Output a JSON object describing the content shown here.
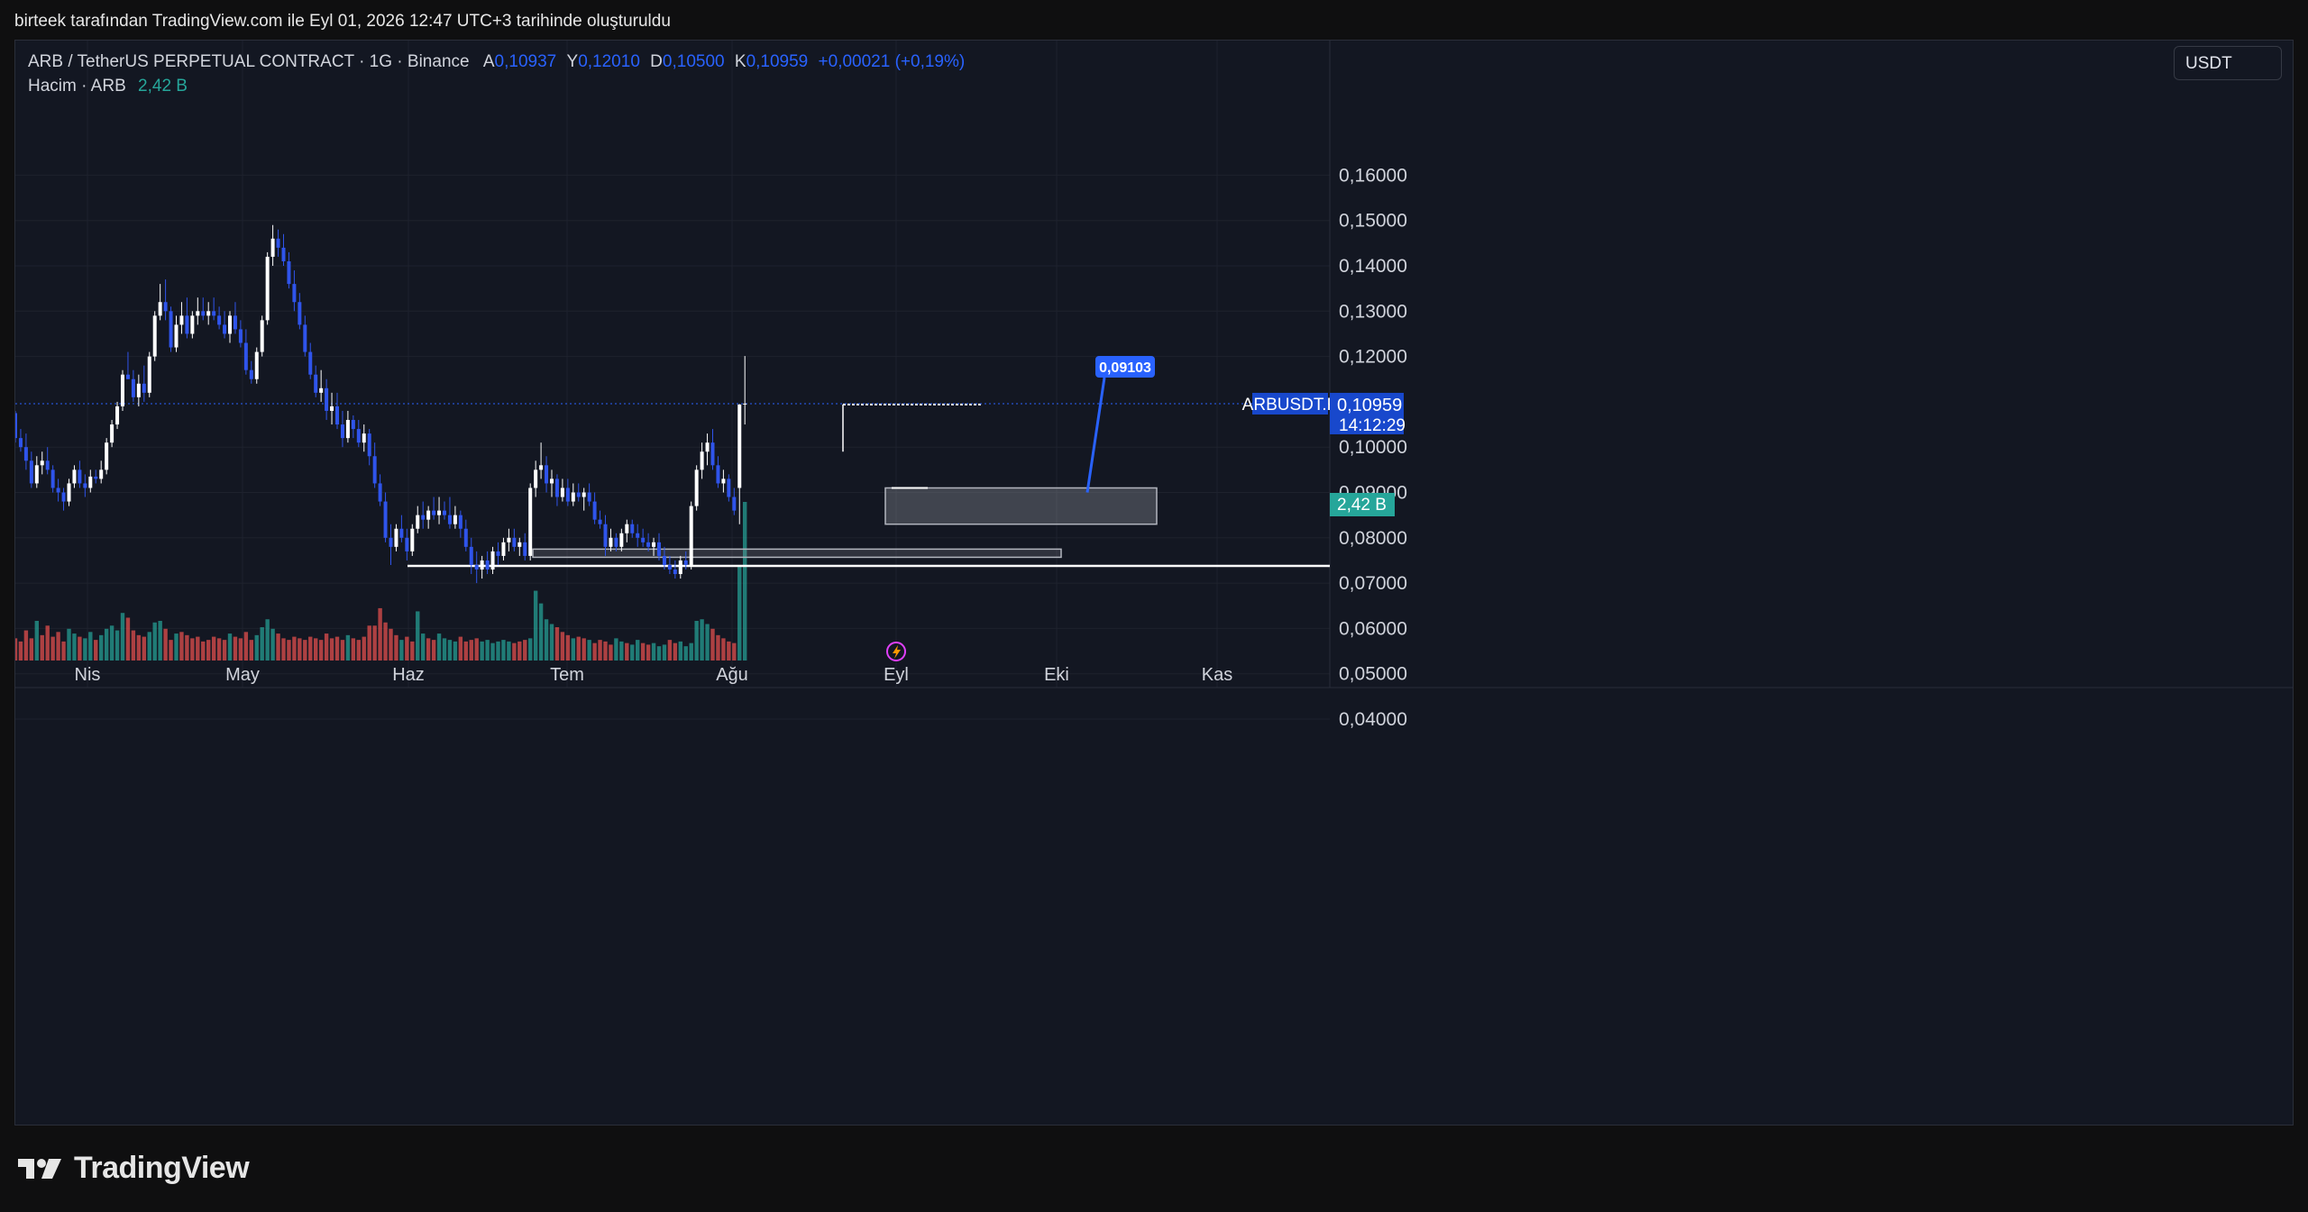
{
  "header": {
    "attribution": "birteek tarafından TradingView.com ile Eyl 01, 2026 12:47 UTC+3 tarihinde oluşturuldu"
  },
  "legend": {
    "symbol": "ARB / TetherUS PERPETUAL CONTRACT · 1G · Binance",
    "open_label": "A",
    "open": "0,10937",
    "high_label": "Y",
    "high": "0,12010",
    "low_label": "D",
    "low": "0,10500",
    "close_label": "K",
    "close": "0,10959",
    "change": "+0,00021 (+0,19%)",
    "volume_label": "Hacim · ARB",
    "volume": "2,42 B"
  },
  "currency_button": "USDT",
  "price_tag": {
    "symbol": "ARBUSDT.P",
    "price": "0,10959",
    "countdown": "14:12:29"
  },
  "volume_tag": "2,42 B",
  "annotation_label": "0,09103",
  "brand": "TradingView",
  "colors": {
    "up_candle": "#ffffff",
    "down_candle": "#2f54eb",
    "up_volume": "#26a69a",
    "down_volume": "#ef5350",
    "accent": "#2962ff"
  },
  "chart_data": {
    "type": "candlestick",
    "x_ticks": [
      "Nis",
      "May",
      "Haz",
      "Tem",
      "Ağu",
      "Eyl",
      "Eki",
      "Kas"
    ],
    "y_ticks": [
      "0,16000",
      "0,15000",
      "0,14000",
      "0,13000",
      "0,12000",
      "0,10000",
      "0,09000",
      "0,08000",
      "0,07000",
      "0,06000",
      "0,05000",
      "0,04000"
    ],
    "ylim": [
      0.033,
      0.17
    ],
    "grid": true,
    "candles": [
      [
        0.1075,
        0.108,
        0.101,
        0.102
      ],
      [
        0.102,
        0.104,
        0.099,
        0.1
      ],
      [
        0.1,
        0.103,
        0.095,
        0.097
      ],
      [
        0.097,
        0.099,
        0.091,
        0.092
      ],
      [
        0.092,
        0.098,
        0.091,
        0.096
      ],
      [
        0.096,
        0.099,
        0.094,
        0.097
      ],
      [
        0.097,
        0.1,
        0.094,
        0.095
      ],
      [
        0.095,
        0.096,
        0.09,
        0.091
      ],
      [
        0.091,
        0.093,
        0.088,
        0.09
      ],
      [
        0.09,
        0.091,
        0.086,
        0.088
      ],
      [
        0.088,
        0.093,
        0.087,
        0.092
      ],
      [
        0.092,
        0.096,
        0.091,
        0.095
      ],
      [
        0.095,
        0.097,
        0.091,
        0.092
      ],
      [
        0.092,
        0.094,
        0.089,
        0.091
      ],
      [
        0.091,
        0.095,
        0.09,
        0.0935
      ],
      [
        0.0935,
        0.095,
        0.092,
        0.093
      ],
      [
        0.093,
        0.097,
        0.092,
        0.095
      ],
      [
        0.095,
        0.102,
        0.094,
        0.101
      ],
      [
        0.101,
        0.106,
        0.1,
        0.105
      ],
      [
        0.105,
        0.11,
        0.104,
        0.109
      ],
      [
        0.109,
        0.117,
        0.108,
        0.116
      ],
      [
        0.116,
        0.121,
        0.115,
        0.115
      ],
      [
        0.115,
        0.117,
        0.11,
        0.111
      ],
      [
        0.111,
        0.116,
        0.109,
        0.114
      ],
      [
        0.114,
        0.118,
        0.11,
        0.112
      ],
      [
        0.112,
        0.121,
        0.111,
        0.12
      ],
      [
        0.12,
        0.13,
        0.119,
        0.129
      ],
      [
        0.129,
        0.136,
        0.128,
        0.132
      ],
      [
        0.132,
        0.137,
        0.128,
        0.13
      ],
      [
        0.13,
        0.131,
        0.121,
        0.122
      ],
      [
        0.122,
        0.129,
        0.121,
        0.127
      ],
      [
        0.127,
        0.132,
        0.125,
        0.129
      ],
      [
        0.129,
        0.133,
        0.124,
        0.125
      ],
      [
        0.125,
        0.13,
        0.124,
        0.129
      ],
      [
        0.129,
        0.133,
        0.127,
        0.13
      ],
      [
        0.13,
        0.133,
        0.128,
        0.129
      ],
      [
        0.129,
        0.132,
        0.127,
        0.13
      ],
      [
        0.13,
        0.133,
        0.128,
        0.129
      ],
      [
        0.129,
        0.131,
        0.126,
        0.127
      ],
      [
        0.127,
        0.13,
        0.124,
        0.125
      ],
      [
        0.125,
        0.13,
        0.123,
        0.129
      ],
      [
        0.129,
        0.132,
        0.125,
        0.126
      ],
      [
        0.126,
        0.128,
        0.122,
        0.123
      ],
      [
        0.123,
        0.126,
        0.116,
        0.117
      ],
      [
        0.117,
        0.119,
        0.114,
        0.115
      ],
      [
        0.115,
        0.122,
        0.114,
        0.121
      ],
      [
        0.121,
        0.129,
        0.12,
        0.128
      ],
      [
        0.128,
        0.143,
        0.127,
        0.142
      ],
      [
        0.142,
        0.149,
        0.14,
        0.146
      ],
      [
        0.146,
        0.148,
        0.142,
        0.144
      ],
      [
        0.144,
        0.147,
        0.14,
        0.141
      ],
      [
        0.141,
        0.143,
        0.135,
        0.136
      ],
      [
        0.136,
        0.139,
        0.13,
        0.132
      ],
      [
        0.132,
        0.134,
        0.126,
        0.127
      ],
      [
        0.127,
        0.129,
        0.12,
        0.121
      ],
      [
        0.121,
        0.123,
        0.115,
        0.116
      ],
      [
        0.116,
        0.118,
        0.111,
        0.112
      ],
      [
        0.112,
        0.117,
        0.11,
        0.113
      ],
      [
        0.113,
        0.115,
        0.106,
        0.108
      ],
      [
        0.108,
        0.112,
        0.105,
        0.109
      ],
      [
        0.109,
        0.112,
        0.104,
        0.105
      ],
      [
        0.105,
        0.108,
        0.1,
        0.102
      ],
      [
        0.102,
        0.108,
        0.101,
        0.106
      ],
      [
        0.106,
        0.107,
        0.102,
        0.104
      ],
      [
        0.104,
        0.106,
        0.1,
        0.101
      ],
      [
        0.101,
        0.105,
        0.099,
        0.103
      ],
      [
        0.103,
        0.104,
        0.096,
        0.098
      ],
      [
        0.098,
        0.101,
        0.091,
        0.092
      ],
      [
        0.092,
        0.094,
        0.087,
        0.088
      ],
      [
        0.088,
        0.09,
        0.079,
        0.08
      ],
      [
        0.08,
        0.083,
        0.074,
        0.078
      ],
      [
        0.078,
        0.083,
        0.077,
        0.082
      ],
      [
        0.082,
        0.085,
        0.079,
        0.08
      ],
      [
        0.08,
        0.082,
        0.075,
        0.077
      ],
      [
        0.077,
        0.083,
        0.076,
        0.082
      ],
      [
        0.082,
        0.087,
        0.081,
        0.085
      ],
      [
        0.085,
        0.088,
        0.082,
        0.084
      ],
      [
        0.084,
        0.087,
        0.082,
        0.086
      ],
      [
        0.086,
        0.089,
        0.084,
        0.085
      ],
      [
        0.085,
        0.089,
        0.083,
        0.086
      ],
      [
        0.086,
        0.088,
        0.084,
        0.085
      ],
      [
        0.085,
        0.089,
        0.082,
        0.083
      ],
      [
        0.083,
        0.087,
        0.082,
        0.085
      ],
      [
        0.085,
        0.086,
        0.08,
        0.082
      ],
      [
        0.082,
        0.084,
        0.077,
        0.078
      ],
      [
        0.078,
        0.08,
        0.072,
        0.074
      ],
      [
        0.074,
        0.077,
        0.07,
        0.073
      ],
      [
        0.073,
        0.076,
        0.071,
        0.075
      ],
      [
        0.075,
        0.077,
        0.072,
        0.073
      ],
      [
        0.073,
        0.078,
        0.072,
        0.077
      ],
      [
        0.077,
        0.079,
        0.074,
        0.076
      ],
      [
        0.076,
        0.08,
        0.075,
        0.079
      ],
      [
        0.079,
        0.082,
        0.077,
        0.08
      ],
      [
        0.08,
        0.082,
        0.077,
        0.078
      ],
      [
        0.078,
        0.08,
        0.076,
        0.079
      ],
      [
        0.079,
        0.081,
        0.075,
        0.076
      ],
      [
        0.076,
        0.092,
        0.075,
        0.091
      ],
      [
        0.091,
        0.097,
        0.089,
        0.095
      ],
      [
        0.095,
        0.101,
        0.093,
        0.096
      ],
      [
        0.096,
        0.098,
        0.09,
        0.092
      ],
      [
        0.092,
        0.095,
        0.089,
        0.093
      ],
      [
        0.093,
        0.094,
        0.087,
        0.089
      ],
      [
        0.089,
        0.093,
        0.088,
        0.091
      ],
      [
        0.091,
        0.093,
        0.087,
        0.088
      ],
      [
        0.088,
        0.092,
        0.087,
        0.09
      ],
      [
        0.09,
        0.092,
        0.088,
        0.089
      ],
      [
        0.089,
        0.091,
        0.086,
        0.09
      ],
      [
        0.09,
        0.092,
        0.087,
        0.088
      ],
      [
        0.088,
        0.09,
        0.083,
        0.084
      ],
      [
        0.084,
        0.086,
        0.082,
        0.083
      ],
      [
        0.083,
        0.085,
        0.076,
        0.078
      ],
      [
        0.078,
        0.082,
        0.077,
        0.08
      ],
      [
        0.08,
        0.081,
        0.077,
        0.078
      ],
      [
        0.078,
        0.082,
        0.077,
        0.081
      ],
      [
        0.081,
        0.084,
        0.079,
        0.083
      ],
      [
        0.083,
        0.084,
        0.08,
        0.081
      ],
      [
        0.081,
        0.083,
        0.078,
        0.08
      ],
      [
        0.08,
        0.082,
        0.078,
        0.079
      ],
      [
        0.079,
        0.081,
        0.077,
        0.078
      ],
      [
        0.078,
        0.08,
        0.076,
        0.079
      ],
      [
        0.079,
        0.081,
        0.075,
        0.076
      ],
      [
        0.076,
        0.078,
        0.073,
        0.074
      ],
      [
        0.074,
        0.076,
        0.072,
        0.073
      ],
      [
        0.073,
        0.075,
        0.071,
        0.072
      ],
      [
        0.072,
        0.076,
        0.071,
        0.075
      ],
      [
        0.075,
        0.077,
        0.073,
        0.074
      ],
      [
        0.074,
        0.088,
        0.073,
        0.087
      ],
      [
        0.087,
        0.096,
        0.086,
        0.095
      ],
      [
        0.095,
        0.101,
        0.093,
        0.099
      ],
      [
        0.099,
        0.103,
        0.096,
        0.101
      ],
      [
        0.101,
        0.104,
        0.095,
        0.096
      ],
      [
        0.096,
        0.098,
        0.091,
        0.092
      ],
      [
        0.092,
        0.095,
        0.09,
        0.093
      ],
      [
        0.093,
        0.094,
        0.088,
        0.089
      ],
      [
        0.089,
        0.091,
        0.085,
        0.086
      ],
      [
        0.091,
        0.1095,
        0.083,
        0.1094
      ],
      [
        0.1094,
        0.1201,
        0.105,
        0.1096
      ]
    ],
    "volume": [
      [
        28,
        0
      ],
      [
        24,
        0
      ],
      [
        38,
        0
      ],
      [
        28,
        0
      ],
      [
        50,
        1
      ],
      [
        32,
        0
      ],
      [
        44,
        0
      ],
      [
        30,
        0
      ],
      [
        36,
        0
      ],
      [
        24,
        0
      ],
      [
        40,
        1
      ],
      [
        34,
        1
      ],
      [
        30,
        0
      ],
      [
        28,
        1
      ],
      [
        36,
        1
      ],
      [
        26,
        0
      ],
      [
        32,
        1
      ],
      [
        40,
        1
      ],
      [
        44,
        1
      ],
      [
        38,
        1
      ],
      [
        60,
        1
      ],
      [
        54,
        0
      ],
      [
        38,
        0
      ],
      [
        32,
        0
      ],
      [
        30,
        0
      ],
      [
        36,
        1
      ],
      [
        48,
        1
      ],
      [
        50,
        1
      ],
      [
        40,
        0
      ],
      [
        26,
        0
      ],
      [
        34,
        1
      ],
      [
        36,
        0
      ],
      [
        32,
        0
      ],
      [
        28,
        0
      ],
      [
        30,
        0
      ],
      [
        24,
        0
      ],
      [
        26,
        0
      ],
      [
        30,
        0
      ],
      [
        28,
        0
      ],
      [
        26,
        0
      ],
      [
        34,
        1
      ],
      [
        30,
        0
      ],
      [
        28,
        0
      ],
      [
        36,
        0
      ],
      [
        26,
        0
      ],
      [
        32,
        1
      ],
      [
        42,
        1
      ],
      [
        52,
        1
      ],
      [
        40,
        1
      ],
      [
        34,
        0
      ],
      [
        28,
        0
      ],
      [
        26,
        0
      ],
      [
        30,
        0
      ],
      [
        28,
        0
      ],
      [
        26,
        0
      ],
      [
        30,
        0
      ],
      [
        28,
        0
      ],
      [
        26,
        0
      ],
      [
        34,
        0
      ],
      [
        28,
        0
      ],
      [
        30,
        0
      ],
      [
        26,
        0
      ],
      [
        32,
        1
      ],
      [
        28,
        0
      ],
      [
        26,
        0
      ],
      [
        30,
        0
      ],
      [
        44,
        0
      ],
      [
        44,
        0
      ],
      [
        66,
        0
      ],
      [
        48,
        0
      ],
      [
        40,
        0
      ],
      [
        32,
        0
      ],
      [
        26,
        1
      ],
      [
        30,
        0
      ],
      [
        24,
        0
      ],
      [
        62,
        1
      ],
      [
        34,
        1
      ],
      [
        28,
        0
      ],
      [
        26,
        0
      ],
      [
        34,
        1
      ],
      [
        28,
        1
      ],
      [
        26,
        1
      ],
      [
        24,
        1
      ],
      [
        30,
        0
      ],
      [
        24,
        0
      ],
      [
        26,
        0
      ],
      [
        28,
        0
      ],
      [
        24,
        1
      ],
      [
        26,
        1
      ],
      [
        22,
        1
      ],
      [
        24,
        1
      ],
      [
        26,
        1
      ],
      [
        24,
        1
      ],
      [
        22,
        0
      ],
      [
        24,
        0
      ],
      [
        26,
        0
      ],
      [
        28,
        1
      ],
      [
        88,
        1
      ],
      [
        72,
        1
      ],
      [
        52,
        1
      ],
      [
        46,
        1
      ],
      [
        42,
        0
      ],
      [
        36,
        0
      ],
      [
        32,
        0
      ],
      [
        28,
        1
      ],
      [
        30,
        0
      ],
      [
        28,
        0
      ],
      [
        26,
        1
      ],
      [
        22,
        0
      ],
      [
        26,
        0
      ],
      [
        24,
        0
      ],
      [
        20,
        0
      ],
      [
        28,
        1
      ],
      [
        24,
        1
      ],
      [
        22,
        0
      ],
      [
        20,
        1
      ],
      [
        26,
        1
      ],
      [
        22,
        0
      ],
      [
        20,
        0
      ],
      [
        22,
        1
      ],
      [
        18,
        1
      ],
      [
        20,
        1
      ],
      [
        26,
        0
      ],
      [
        22,
        0
      ],
      [
        24,
        1
      ],
      [
        18,
        1
      ],
      [
        22,
        1
      ],
      [
        50,
        1
      ],
      [
        52,
        1
      ],
      [
        46,
        1
      ],
      [
        40,
        0
      ],
      [
        32,
        0
      ],
      [
        28,
        0
      ],
      [
        24,
        0
      ],
      [
        22,
        0
      ],
      [
        120,
        1
      ],
      [
        200,
        1
      ]
    ],
    "lines": [
      {
        "name": "",
        "y": 0.0738
      },
      {
        "name": "",
        "y": 0.1094
      }
    ],
    "zones": [
      {
        "y_top": 0.091,
        "y_bottom": 0.083
      },
      {
        "y_top": 0.0775,
        "y_bottom": 0.0757
      }
    ],
    "last_price": 0.10959,
    "annotation_value": 0.09103
  }
}
